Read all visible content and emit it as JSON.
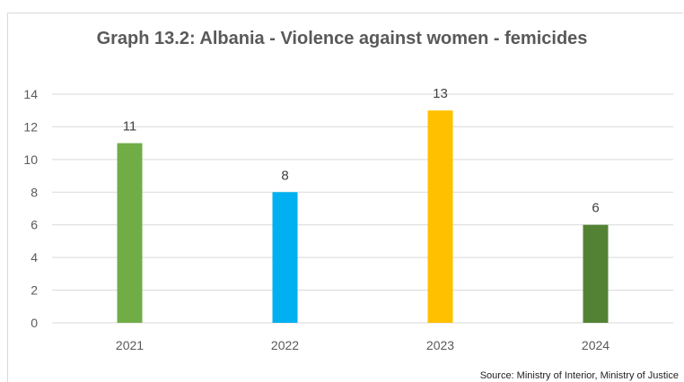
{
  "chart_data": {
    "type": "bar",
    "title": "Graph 13.2: Albania - Violence against women - femicides",
    "categories": [
      "2021",
      "2022",
      "2023",
      "2024"
    ],
    "values": [
      11,
      8,
      13,
      6
    ],
    "bar_colors": [
      "#70ad47",
      "#00b0f0",
      "#ffc000",
      "#548235"
    ],
    "ylim": [
      0,
      14
    ],
    "yticks": [
      0,
      2,
      4,
      6,
      8,
      10,
      12,
      14
    ],
    "grid": true,
    "xlabel": "",
    "ylabel": "",
    "source": "Source: Ministry of Interior, Ministry of Justice"
  }
}
